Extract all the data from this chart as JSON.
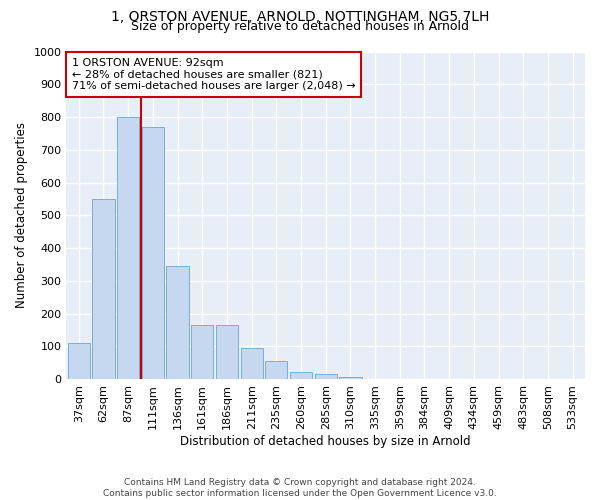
{
  "title1": "1, ORSTON AVENUE, ARNOLD, NOTTINGHAM, NG5 7LH",
  "title2": "Size of property relative to detached houses in Arnold",
  "xlabel": "Distribution of detached houses by size in Arnold",
  "ylabel": "Number of detached properties",
  "footer1": "Contains HM Land Registry data © Crown copyright and database right 2024.",
  "footer2": "Contains public sector information licensed under the Open Government Licence v3.0.",
  "annotation_line1": "1 ORSTON AVENUE: 92sqm",
  "annotation_line2": "← 28% of detached houses are smaller (821)",
  "annotation_line3": "71% of semi-detached houses are larger (2,048) →",
  "bar_labels": [
    "37sqm",
    "62sqm",
    "87sqm",
    "111sqm",
    "136sqm",
    "161sqm",
    "186sqm",
    "211sqm",
    "235sqm",
    "260sqm",
    "285sqm",
    "310sqm",
    "335sqm",
    "359sqm",
    "384sqm",
    "409sqm",
    "434sqm",
    "459sqm",
    "483sqm",
    "508sqm",
    "533sqm"
  ],
  "bar_values": [
    110,
    550,
    800,
    770,
    345,
    165,
    165,
    95,
    55,
    22,
    15,
    5,
    0,
    0,
    0,
    0,
    0,
    0,
    0,
    0,
    0
  ],
  "bar_color": "#c5d8f0",
  "bar_edge_color": "#7aaed6",
  "vline_color": "#cc0000",
  "vline_x_index": 2,
  "annotation_box_color": "#cc0000",
  "ylim": [
    0,
    1000
  ],
  "yticks": [
    0,
    100,
    200,
    300,
    400,
    500,
    600,
    700,
    800,
    900,
    1000
  ],
  "bg_color": "#e8eef8",
  "grid_color": "#ffffff",
  "title1_fontsize": 10,
  "title2_fontsize": 9,
  "xlabel_fontsize": 8.5,
  "ylabel_fontsize": 8.5,
  "tick_fontsize": 8,
  "annot_fontsize": 8
}
